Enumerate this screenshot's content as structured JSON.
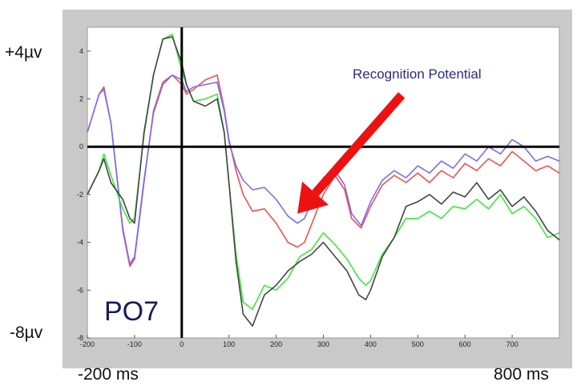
{
  "labels": {
    "y_max": "+4µv",
    "y_min": "-8µv",
    "x_min": "-200 ms",
    "x_max": "800 ms"
  },
  "colors": {
    "red": "#f05050",
    "blue": "#7b6cf0",
    "green": "#3ce83c",
    "black": "#444444",
    "arrow": "#ee1111",
    "annotation_text": "#2a2a8a",
    "electrode_text": "#1a1a5a"
  },
  "chart_data": {
    "type": "line",
    "xlim": [
      -200,
      800
    ],
    "ylim": [
      -8,
      5
    ],
    "x_ticks": [
      -200,
      -100,
      0,
      100,
      200,
      300,
      400,
      500,
      600,
      700
    ],
    "y_ticks": [
      4,
      2,
      0,
      -2,
      -4,
      -6,
      -8
    ],
    "electrode_label": "PO7",
    "annotation": "Recognition Potential",
    "arrow_target": [
      245,
      -2.8
    ],
    "series": [
      {
        "color": "red",
        "x": [
          -200,
          -175,
          -165,
          -150,
          -125,
          -110,
          -100,
          -80,
          -60,
          -40,
          -20,
          0,
          10,
          25,
          50,
          75,
          90,
          100,
          115,
          130,
          150,
          175,
          200,
          225,
          245,
          260,
          280,
          300,
          325,
          345,
          360,
          380,
          400,
          425,
          450,
          475,
          500,
          525,
          550,
          575,
          600,
          625,
          650,
          675,
          700,
          725,
          750,
          775,
          800
        ],
        "y": [
          0.6,
          2.2,
          2.5,
          1.0,
          -3.5,
          -5.0,
          -4.7,
          -1.5,
          1.5,
          2.7,
          3.0,
          2.6,
          2.2,
          2.4,
          2.8,
          3.0,
          1.6,
          0.3,
          -1.0,
          -2.0,
          -2.7,
          -2.6,
          -3.2,
          -4.0,
          -4.2,
          -4.0,
          -3.0,
          -2.0,
          -1.2,
          -1.8,
          -3.0,
          -3.4,
          -2.5,
          -1.6,
          -1.2,
          -1.5,
          -1.1,
          -1.5,
          -1.0,
          -1.3,
          -0.7,
          -1.0,
          -0.5,
          -0.8,
          -0.2,
          -0.6,
          -1.0,
          -0.8,
          -1.1
        ]
      },
      {
        "color": "blue",
        "x": [
          -200,
          -175,
          -165,
          -150,
          -125,
          -110,
          -100,
          -80,
          -60,
          -40,
          -20,
          0,
          10,
          25,
          50,
          75,
          90,
          100,
          115,
          130,
          150,
          175,
          200,
          225,
          245,
          260,
          280,
          300,
          325,
          345,
          360,
          380,
          400,
          425,
          450,
          475,
          500,
          525,
          550,
          575,
          600,
          625,
          650,
          675,
          700,
          725,
          750,
          775,
          800
        ],
        "y": [
          0.6,
          2.2,
          2.4,
          1.0,
          -3.4,
          -4.9,
          -4.6,
          -1.4,
          1.4,
          2.6,
          3.0,
          2.8,
          2.3,
          2.5,
          2.6,
          2.7,
          1.5,
          0.2,
          -0.8,
          -1.4,
          -1.8,
          -1.7,
          -2.2,
          -2.9,
          -3.2,
          -3.0,
          -2.1,
          -1.3,
          -1.0,
          -1.6,
          -2.8,
          -3.3,
          -2.3,
          -1.4,
          -1.0,
          -1.3,
          -0.8,
          -1.1,
          -0.6,
          -0.9,
          -0.3,
          -0.6,
          0.0,
          -0.3,
          0.3,
          0.0,
          -0.6,
          -0.4,
          -0.6
        ]
      },
      {
        "color": "green",
        "x": [
          -200,
          -175,
          -165,
          -150,
          -125,
          -110,
          -100,
          -80,
          -60,
          -40,
          -20,
          0,
          10,
          25,
          50,
          75,
          90,
          100,
          115,
          130,
          150,
          175,
          200,
          225,
          250,
          275,
          300,
          325,
          350,
          375,
          390,
          400,
          425,
          450,
          475,
          500,
          525,
          550,
          575,
          600,
          625,
          650,
          675,
          700,
          725,
          750,
          775,
          800
        ],
        "y": [
          -2.0,
          -1.0,
          -0.3,
          -1.2,
          -2.6,
          -3.2,
          -3.0,
          0.5,
          3.0,
          4.5,
          4.7,
          3.2,
          2.6,
          1.9,
          2.0,
          2.2,
          0.6,
          -1.5,
          -4.5,
          -6.5,
          -6.8,
          -5.8,
          -6.0,
          -5.5,
          -4.6,
          -4.3,
          -3.6,
          -4.1,
          -4.7,
          -5.5,
          -5.8,
          -5.6,
          -4.5,
          -3.8,
          -3.0,
          -3.0,
          -2.7,
          -3.0,
          -2.5,
          -2.6,
          -2.2,
          -2.6,
          -2.0,
          -2.8,
          -2.5,
          -3.0,
          -3.8,
          -3.6
        ]
      },
      {
        "color": "black",
        "x": [
          -200,
          -175,
          -165,
          -150,
          -125,
          -110,
          -100,
          -80,
          -60,
          -40,
          -20,
          0,
          10,
          25,
          50,
          75,
          90,
          100,
          115,
          130,
          150,
          175,
          200,
          225,
          250,
          275,
          300,
          325,
          350,
          375,
          390,
          400,
          425,
          450,
          475,
          500,
          525,
          550,
          575,
          600,
          625,
          650,
          675,
          700,
          725,
          750,
          775,
          800
        ],
        "y": [
          -2.0,
          -1.0,
          -0.5,
          -1.5,
          -2.2,
          -3.0,
          -3.2,
          0.6,
          3.0,
          4.5,
          4.6,
          3.5,
          2.6,
          1.9,
          1.7,
          2.0,
          0.6,
          -1.5,
          -4.8,
          -7.0,
          -7.5,
          -6.2,
          -5.8,
          -5.2,
          -4.8,
          -4.5,
          -4.0,
          -4.6,
          -5.2,
          -6.2,
          -6.4,
          -6.0,
          -4.6,
          -3.8,
          -2.5,
          -2.3,
          -2.0,
          -2.4,
          -1.9,
          -2.1,
          -1.5,
          -2.2,
          -1.8,
          -2.5,
          -2.1,
          -2.7,
          -3.5,
          -3.9
        ]
      }
    ]
  }
}
